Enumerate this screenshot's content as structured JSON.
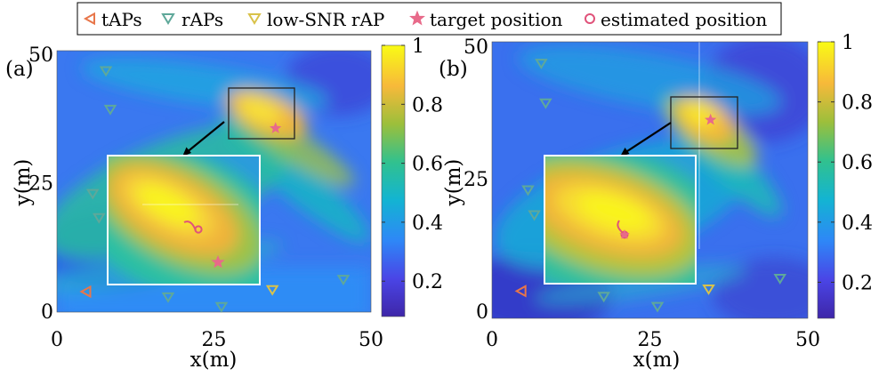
{
  "legend": [
    {
      "label": "tAPs",
      "marker": "triangle-left",
      "color": "#e8764a"
    },
    {
      "label": "rAPs",
      "marker": "triangle-down",
      "color": "#5fa89a"
    },
    {
      "label": "low-SNR rAP",
      "marker": "triangle-down",
      "color": "#d9c24a"
    },
    {
      "label": "target position",
      "marker": "star",
      "color": "#e86a8a"
    },
    {
      "label": "estimated position",
      "marker": "circle",
      "color": "#e0527a"
    }
  ],
  "colors": {
    "colormap": [
      "#3e26a8",
      "#4a45e6",
      "#2e87f7",
      "#13b4d2",
      "#31c18e",
      "#9cbf3b",
      "#f7b93a",
      "#f9fb15"
    ]
  },
  "chart_data": [
    {
      "type": "heatmap",
      "panel_label": "(a)",
      "xlabel": "x(m)",
      "ylabel": "y(m)",
      "xlim": [
        0,
        50
      ],
      "ylim": [
        0,
        50
      ],
      "x_ticks": [
        0,
        25,
        50
      ],
      "y_ticks": [
        0,
        25,
        50
      ],
      "colorbar": {
        "range": [
          0.08,
          1
        ],
        "ticks": [
          0.2,
          0.4,
          0.6,
          0.8,
          1
        ],
        "tick_labels": [
          "0.2",
          "0.4",
          "0.6",
          "0.8",
          "1"
        ]
      },
      "tAPs": [
        [
          4.6,
          3.8
        ]
      ],
      "rAPs": [
        [
          7.8,
          46.8
        ],
        [
          8.5,
          39.3
        ],
        [
          5.7,
          22.9
        ],
        [
          6.7,
          18.2
        ],
        [
          17.7,
          2.8
        ],
        [
          26.2,
          0.9
        ],
        [
          45.6,
          6.2
        ]
      ],
      "low_snr_rAPs": [
        [
          34.3,
          4.2
        ]
      ],
      "target": [
        34.8,
        35.6
      ],
      "estimated": [
        35.0,
        36.3
      ],
      "zoom_box": {
        "x": [
          27.3,
          38.0
        ],
        "y": [
          33.4,
          41.8
        ]
      },
      "inset_region": {
        "x": [
          8.0,
          32.8
        ],
        "y": [
          5.0,
          25.6
        ]
      }
    },
    {
      "type": "heatmap",
      "panel_label": "(b)",
      "xlabel": "x(m)",
      "ylabel": "y(m)",
      "xlim": [
        0,
        50
      ],
      "ylim": [
        0,
        50
      ],
      "x_ticks": [
        0,
        25,
        50
      ],
      "y_ticks": [
        0,
        25,
        50
      ],
      "colorbar": {
        "range": [
          0.08,
          1
        ],
        "ticks": [
          0.2,
          0.4,
          0.6,
          0.8,
          1
        ],
        "tick_labels": [
          "0.2",
          "0.4",
          "0.6",
          "0.8",
          "1"
        ]
      },
      "tAPs": [
        [
          4.6,
          3.8
        ]
      ],
      "rAPs": [
        [
          7.8,
          46.8
        ],
        [
          8.5,
          39.3
        ],
        [
          5.7,
          22.9
        ],
        [
          6.7,
          18.2
        ],
        [
          17.7,
          2.8
        ],
        [
          26.2,
          0.9
        ],
        [
          45.6,
          6.2
        ]
      ],
      "low_snr_rAPs": [
        [
          34.3,
          4.2
        ]
      ],
      "target": [
        34.6,
        36.1
      ],
      "estimated": [
        34.7,
        36.3
      ],
      "zoom_box": {
        "x": [
          29.5,
          39.9
        ],
        "y": [
          31.8,
          40.9
        ]
      },
      "inset_region": {
        "x": [
          8.9,
          32.8
        ],
        "y": [
          5.0,
          25.3
        ]
      }
    }
  ]
}
